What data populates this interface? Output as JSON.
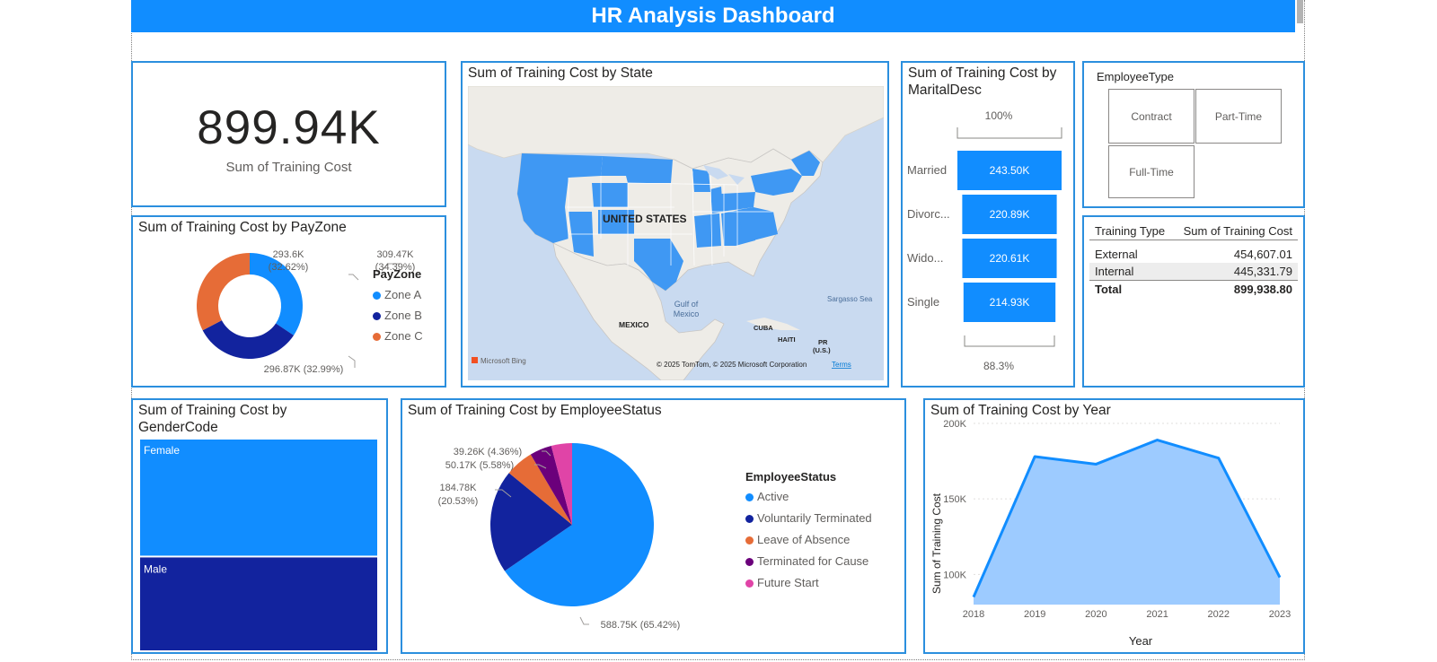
{
  "header": {
    "title": "HR Analysis Dashboard"
  },
  "kpi": {
    "value": "899.94K",
    "label": "Sum of Training Cost"
  },
  "map": {
    "title": "Sum of Training Cost by State",
    "labels": {
      "us": "UNITED STATES",
      "gulf": "Gulf of Mexico",
      "gulf1": "Gulf of",
      "gulf2": "Mexico",
      "sargasso": "Sargasso Sea",
      "mexico": "MEXICO",
      "cuba": "CUBA",
      "haiti": "HAITI",
      "pr": "PR",
      "pr2": "(U.S.)",
      "bing": "Microsoft Bing",
      "copyright": "© 2025 TomTom, © 2025 Microsoft Corporation",
      "terms": "Terms"
    }
  },
  "colors": {
    "accent": "#118dff",
    "zoneA": "#118dff",
    "zoneB": "#12239e",
    "zoneC": "#e66c37",
    "purple": "#6b007b",
    "pink": "#e044a7",
    "border": "#2b8fde"
  },
  "chart_data": [
    {
      "id": "payzone",
      "type": "donut",
      "title": "Sum of Training Cost by PayZone",
      "legend_title": "PayZone",
      "categories": [
        "Zone A",
        "Zone B",
        "Zone C"
      ],
      "values": [
        309.47,
        296.87,
        293.6
      ],
      "labels": [
        "309.47K",
        "296.87K (32.99%)",
        "293.6K"
      ],
      "pct_labels": [
        "(34.39%)",
        "",
        "(32.62%)"
      ],
      "colors": [
        "#118dff",
        "#12239e",
        "#e66c37"
      ]
    },
    {
      "id": "marital",
      "type": "funnel",
      "title_line1": "Sum of Training Cost by",
      "title_line2": "MaritalDesc",
      "top_pct": "100%",
      "bottom_pct": "88.3%",
      "categories": [
        "Married",
        "Divorc...",
        "Wido...",
        "Single"
      ],
      "values": [
        243.5,
        220.89,
        220.61,
        214.93
      ],
      "labels": [
        "243.50K",
        "220.89K",
        "220.61K",
        "214.93K"
      ]
    },
    {
      "id": "gender",
      "type": "treemap",
      "title_line1": "Sum of Training Cost by",
      "title_line2": "GenderCode",
      "categories": [
        "Female",
        "Male"
      ],
      "values": [
        1,
        0.8
      ],
      "colors": [
        "#118dff",
        "#12239e"
      ]
    },
    {
      "id": "status",
      "type": "pie",
      "title": "Sum of Training Cost by EmployeeStatus",
      "legend_title": "EmployeeStatus",
      "categories": [
        "Active",
        "Voluntarily Terminated",
        "Leave of Absence",
        "Terminated for Cause",
        "Future Start"
      ],
      "values": [
        588.75,
        184.78,
        50.17,
        39.26,
        37.0
      ],
      "labels": [
        "588.75K (65.42%)",
        "184.78K",
        "50.17K (5.58%)",
        "39.26K (4.36%)",
        ""
      ],
      "pct_labels": [
        "",
        "(20.53%)",
        "",
        "",
        ""
      ],
      "colors": [
        "#118dff",
        "#12239e",
        "#e66c37",
        "#6b007b",
        "#e044a7"
      ]
    },
    {
      "id": "year",
      "type": "area",
      "title": "Sum of Training Cost by Year",
      "xlabel": "Year",
      "ylabel": "Sum of Training Cost",
      "x": [
        "2018",
        "2019",
        "2020",
        "2021",
        "2022",
        "2023"
      ],
      "values": [
        85,
        178,
        173,
        189,
        177,
        98
      ],
      "ylim": [
        80,
        200
      ],
      "yticks": [
        100,
        150,
        200
      ],
      "ytick_labels": [
        "100K",
        "150K",
        "200K"
      ]
    }
  ],
  "employee_type": {
    "title": "EmployeeType",
    "tiles": [
      "Contract",
      "Part-Time",
      "Full-Time"
    ]
  },
  "training_table": {
    "headers": [
      "Training Type",
      "Sum of Training Cost"
    ],
    "rows": [
      [
        "External",
        "454,607.01"
      ],
      [
        "Internal",
        "445,331.79"
      ]
    ],
    "total": [
      "Total",
      "899,938.80"
    ]
  }
}
